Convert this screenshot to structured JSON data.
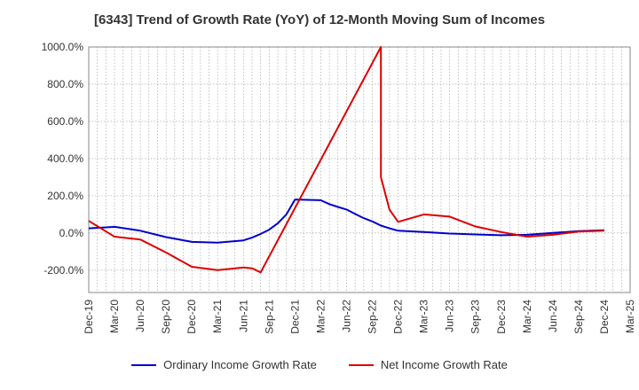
{
  "chart_data": {
    "type": "line",
    "title": "[6343]  Trend of Growth Rate (YoY) of 12-Month Moving Sum of Incomes",
    "xlabel": "",
    "ylabel": "",
    "ylim": [
      -320,
      1000
    ],
    "y_ticks": [
      -200,
      0,
      200,
      400,
      600,
      800,
      1000
    ],
    "y_tick_labels": [
      "-200.0%",
      "0.0%",
      "200.0%",
      "400.0%",
      "600.0%",
      "800.0%",
      "1000.0%"
    ],
    "x_tick_labels": [
      "Dec-19",
      "Mar-20",
      "Jun-20",
      "Sep-20",
      "Dec-20",
      "Mar-21",
      "Jun-21",
      "Sep-21",
      "Dec-21",
      "Mar-22",
      "Jun-22",
      "Sep-22",
      "Dec-22",
      "Mar-23",
      "Jun-23",
      "Sep-23",
      "Dec-23",
      "Mar-24",
      "Jun-24",
      "Sep-24",
      "Dec-24",
      "Mar-25"
    ],
    "x_range_months": [
      "2019-12",
      "2025-03"
    ],
    "grid": true,
    "legend_position": "bottom",
    "series": [
      {
        "name": "Ordinary Income Growth Rate",
        "color": "#0000cc",
        "x": [
          "2019-12",
          "2020-03",
          "2020-06",
          "2020-09",
          "2020-12",
          "2021-03",
          "2021-06",
          "2021-07",
          "2021-08",
          "2021-09",
          "2021-10",
          "2021-11",
          "2021-12",
          "2022-03",
          "2022-04",
          "2022-05",
          "2022-06",
          "2022-07",
          "2022-08",
          "2022-09",
          "2022-10",
          "2022-11",
          "2022-12",
          "2023-03",
          "2023-06",
          "2023-09",
          "2023-12",
          "2024-03",
          "2024-06",
          "2024-09",
          "2024-12"
        ],
        "values": [
          25,
          33,
          12,
          -22,
          -48,
          -52,
          -40,
          -25,
          -5,
          18,
          52,
          100,
          180,
          176,
          155,
          140,
          126,
          102,
          80,
          62,
          40,
          25,
          12,
          5,
          -3,
          -8,
          -12,
          -10,
          0,
          10,
          15
        ]
      },
      {
        "name": "Net Income Growth Rate",
        "color": "#dd0000",
        "x": [
          "2019-12",
          "2020-03",
          "2020-06",
          "2020-09",
          "2020-12",
          "2021-03",
          "2021-06",
          "2021-07",
          "2021-08",
          "2022-10",
          "2022-10",
          "2022-11",
          "2022-12",
          "2023-03",
          "2023-06",
          "2023-09",
          "2023-12",
          "2024-03",
          "2024-06",
          "2024-09",
          "2024-12"
        ],
        "values": [
          65,
          -20,
          -35,
          -105,
          -182,
          -200,
          -185,
          -190,
          -212,
          1000,
          300,
          125,
          60,
          100,
          88,
          35,
          5,
          -20,
          -10,
          8,
          12
        ]
      }
    ]
  }
}
